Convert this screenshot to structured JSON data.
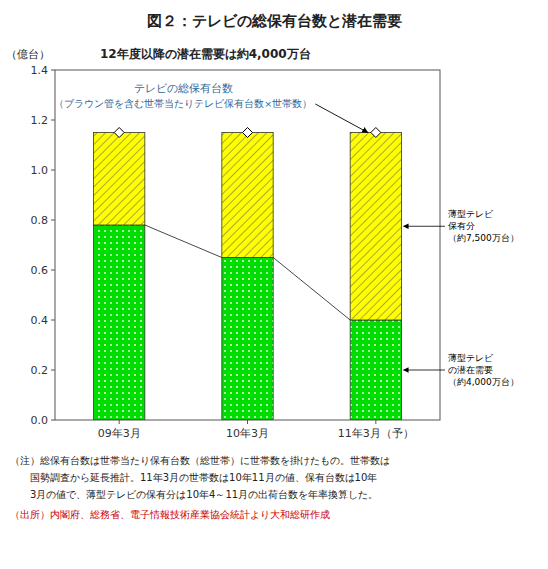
{
  "chart_data": {
    "type": "bar",
    "stacked": true,
    "title": "図２：テレビの総保有台数と潜在需要",
    "subtitle": "12年度以降の潜在需要は約4,000万台",
    "ylabel": "（億台）",
    "categories": [
      "09年3月",
      "10年3月",
      "11年3月（予）"
    ],
    "series": [
      {
        "color": "#00dd00",
        "values": [
          0.78,
          0.65,
          0.4
        ]
      },
      {
        "color": "#ffff00",
        "values": [
          0.37,
          0.5,
          0.75
        ]
      },
      {
        "type": "scatter",
        "marker": "diamond",
        "color": "#ffffff",
        "values": [
          1.15,
          1.15,
          1.15
        ]
      }
    ],
    "ylim": [
      0,
      1.4
    ],
    "yticks": [
      {
        "value": 0,
        "label": "0.0"
      },
      0.2,
      0.4,
      0.6,
      0.8,
      {
        "value": 1.0,
        "label": "1.0"
      },
      1.2,
      1.4
    ],
    "annotations": [
      {
        "text": "テレビの総保有台数",
        "color": "#336699"
      },
      {
        "text": "（ブラウン管を含む世帯当たりテレビ保有台数×世帯数）",
        "color": "#336699"
      },
      {
        "text": "薄型テレビ\n保有分\n（約7,500万台）"
      },
      {
        "text": "薄型テレビ\nの潜在需要\n（約4,000万台）"
      }
    ],
    "notes": [
      {
        "text": "（注）総保有台数は世帯当たり保有台数（総世帯）に世帯数を掛けたもの。世帯数は"
      },
      {
        "text": "　　国勢調査から延長推計。11年3月の世帯数は10年11月の値、保有台数は10年"
      },
      {
        "text": "　　3月の値で、薄型テレビの保有分は10年4～11月の出荷台数を年率換算した。"
      },
      {
        "text": "（出所）内閣府、総務省、電子情報技術産業協会統計より大和総研作成",
        "color": "#cc0000"
      }
    ]
  }
}
